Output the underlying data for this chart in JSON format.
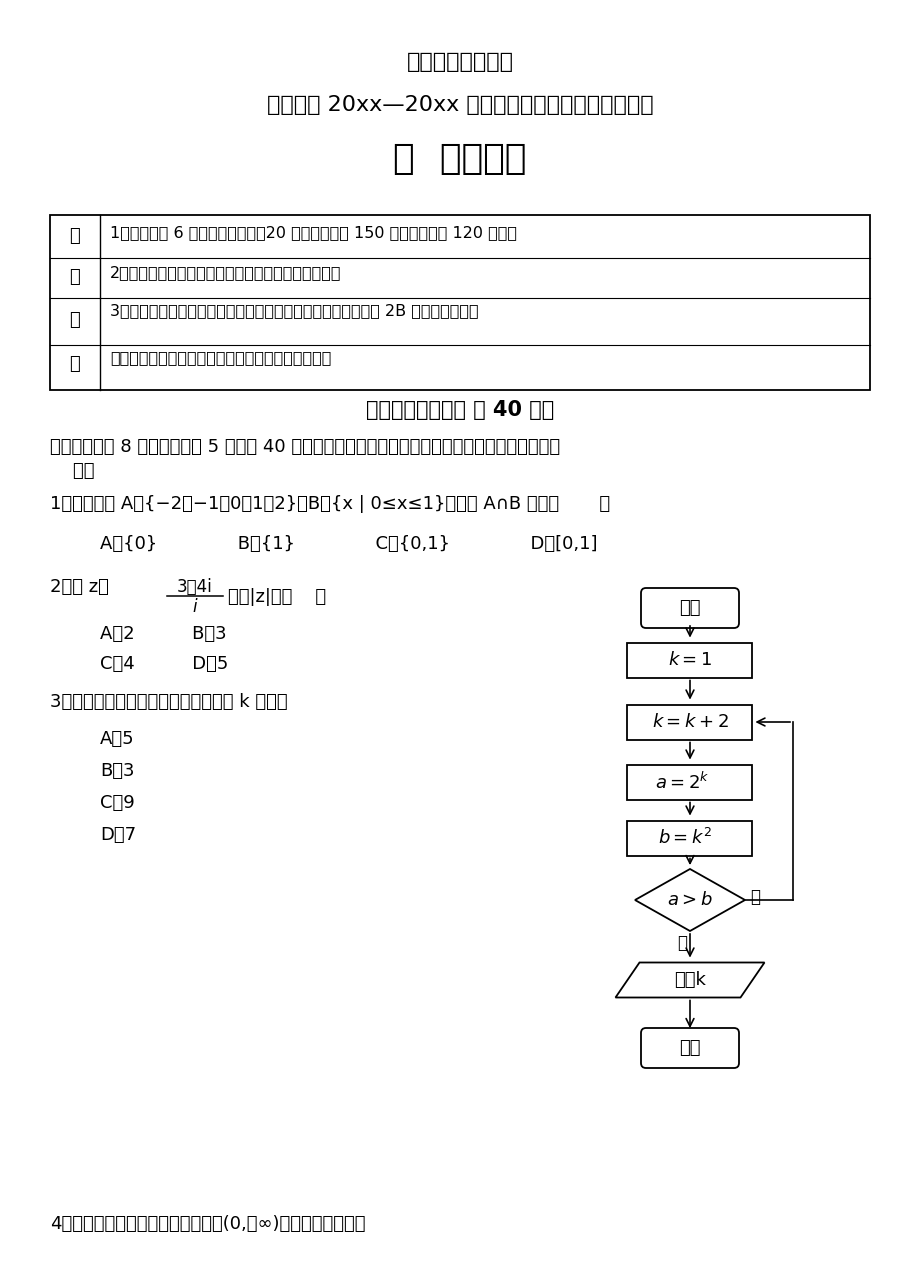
{
  "bg_color": "#ffffff",
  "title1": "高考数学最新资料",
  "title2": "石景山区 20xx—20xx 学年第一学期高三年级期末试卷",
  "title3": "数  学（理）",
  "notice_left": [
    "考",
    "生",
    "须",
    "知"
  ],
  "notice_rows": [
    "1．本试卷共 6 页，共三道大题，20 道小题，满分 150 分．考试时间 120 分钟．",
    "2．在答题卡上准确填写学校名称、姓名和准考证号．",
    "3．试题答案一律填涂或书写在答题卡上，选择题、作图题请用 2B 铅笔作答，其他",
    "试题请用黑色字迹签字笔作答，在试卷上作答无效．"
  ],
  "sec1_title": "第一部分（选择题 共 40 分）",
  "sec1_intro1": "一、选择题共 8 小题，每小题 5 分，共 40 分．在每小题列出的四个选项中，选出符合题目要求的一",
  "sec1_intro2": "    项．",
  "q1_text": "1．已知集合 A＝{−2，−1，0，1，2}，B＝{x | 0≤x≤1}，那么 A∩B 等于（       ）",
  "q1_opts": "A．{0}              B．{1}              C．{0,1}              D．[0,1]",
  "q2_pre": "2．若 z＝",
  "q2_num": "3＋4i",
  "q2_den": "i",
  "q2_post": "，则|z|＝（    ）",
  "q2_optA": "A．2",
  "q2_optB": "B．3",
  "q2_optC": "C．4",
  "q2_optD": "D．5",
  "q3_text": "3．执行如图所示的程序框图，输出的 k 值是（",
  "q3_opts": [
    "A．5",
    "B．3",
    "C．9",
    "D．7"
  ],
  "q4_text": "4．下列函数中既是奇函数又在区间(0,＋∞)上单调递减的是（",
  "fc_start": "开始",
  "fc_k1": "k＝1",
  "fc_kk2": "k＝k＋2",
  "fc_a": "a＝2",
  "fc_ak": "k",
  "fc_b": "b＝k",
  "fc_b2": "2",
  "fc_dec": "a＞b",
  "fc_yes": "是",
  "fc_no": "否",
  "fc_out": "输出k",
  "fc_end": "结束"
}
